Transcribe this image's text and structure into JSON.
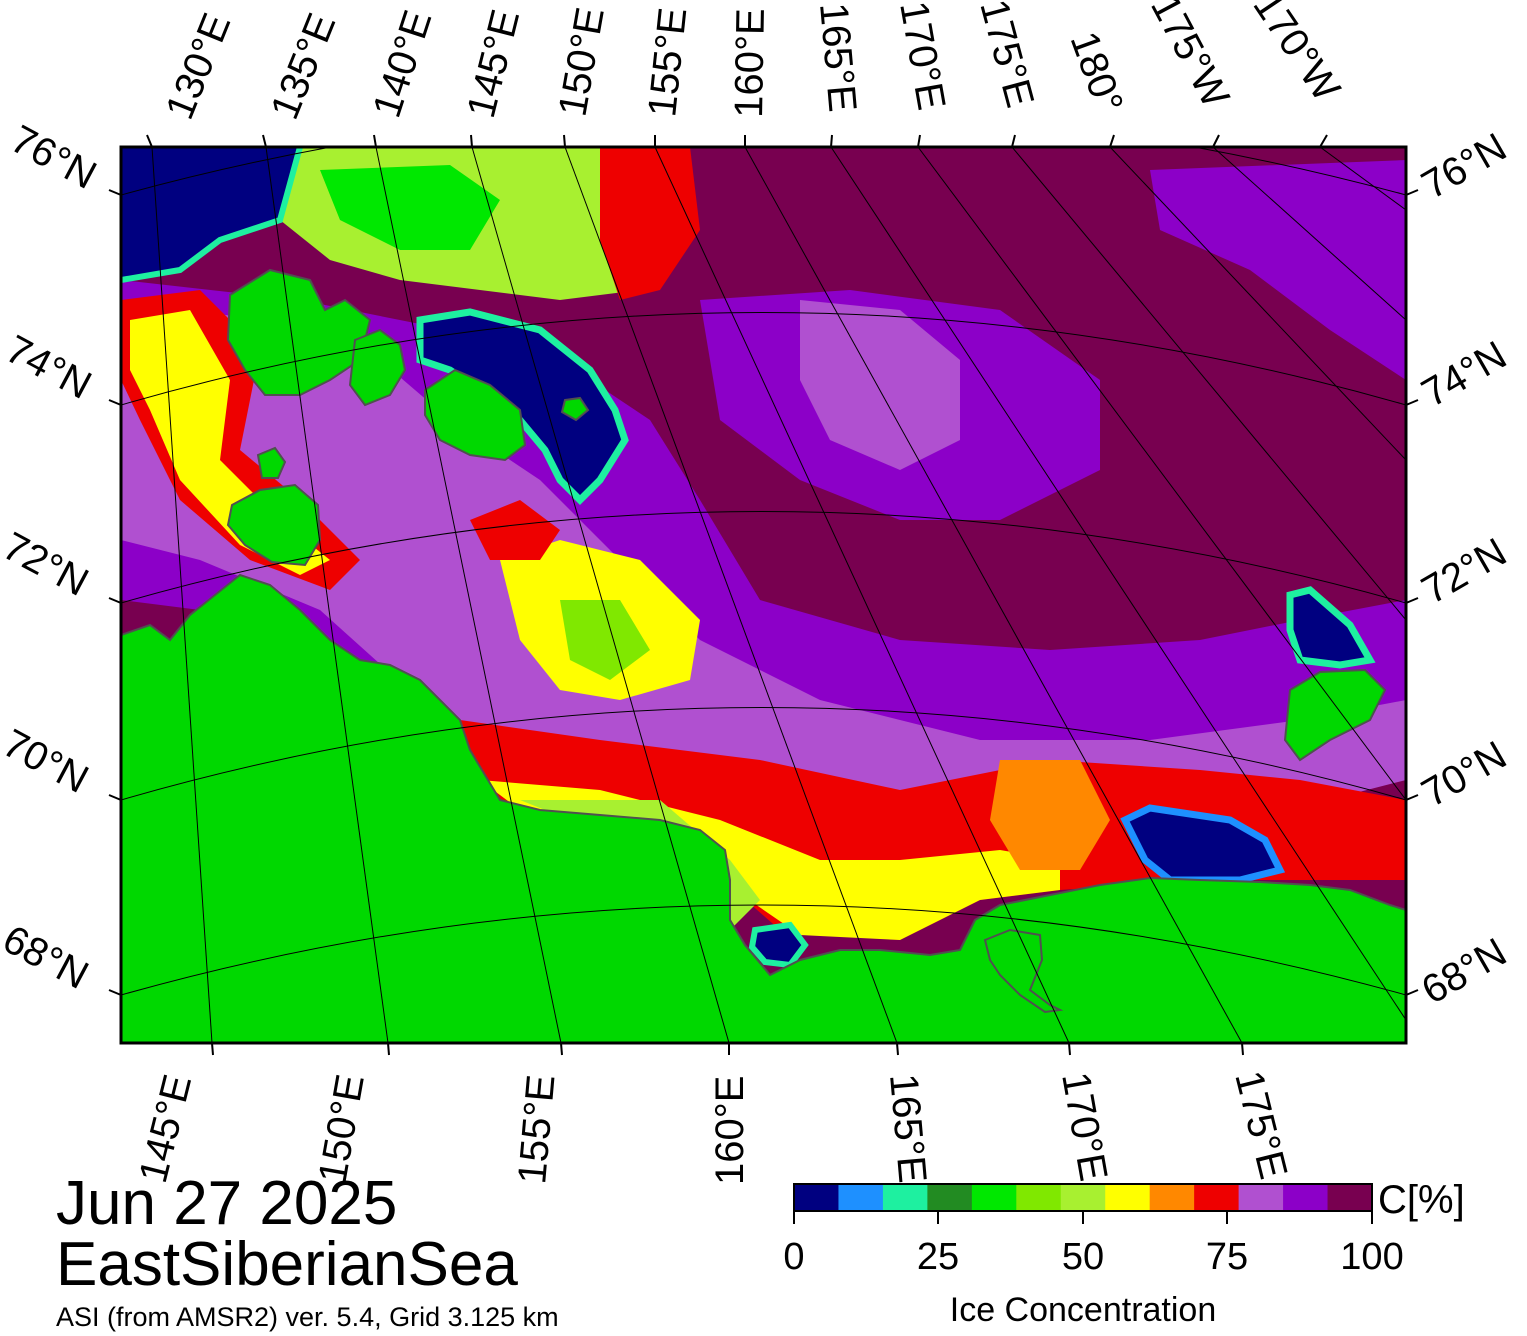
{
  "title": {
    "date": "Jun 27 2025",
    "region": "EastSiberianSea",
    "source": "ASI (from AMSR2) ver. 5.4,  Grid 3.125 km"
  },
  "map": {
    "top_labels": [
      "130°E",
      "135°E",
      "140°E",
      "145°E",
      "150°E",
      "155°E",
      "160°E",
      "165°E",
      "170°E",
      "175°E",
      "180°",
      "175°W",
      "170°W"
    ],
    "bottom_labels": [
      "145°E",
      "150°E",
      "155°E",
      "160°E",
      "165°E",
      "170°E",
      "175°E"
    ],
    "left_labels": [
      "76°N",
      "74°N",
      "72°N",
      "70°N",
      "68°N"
    ],
    "right_labels": [
      "76°N",
      "74°N",
      "72°N",
      "70°N",
      "68°N"
    ],
    "colors": {
      "land": "#00d800",
      "coast": "#505050",
      "open_water": "#000080",
      "ice_high": "#780050",
      "ice_mid": "#8c00c8",
      "ice_low": "#b050d0"
    }
  },
  "colorbar": {
    "title": "C[%]",
    "label": "Ice Concentration",
    "ticks": [
      "0",
      "25",
      "50",
      "75",
      "100"
    ],
    "colors": [
      "#000080",
      "#1e90ff",
      "#1ef0a0",
      "#228b22",
      "#00e800",
      "#80e800",
      "#a8f030",
      "#ffff00",
      "#ff8800",
      "#ee0000",
      "#b050d0",
      "#8c00c8",
      "#780050"
    ]
  }
}
